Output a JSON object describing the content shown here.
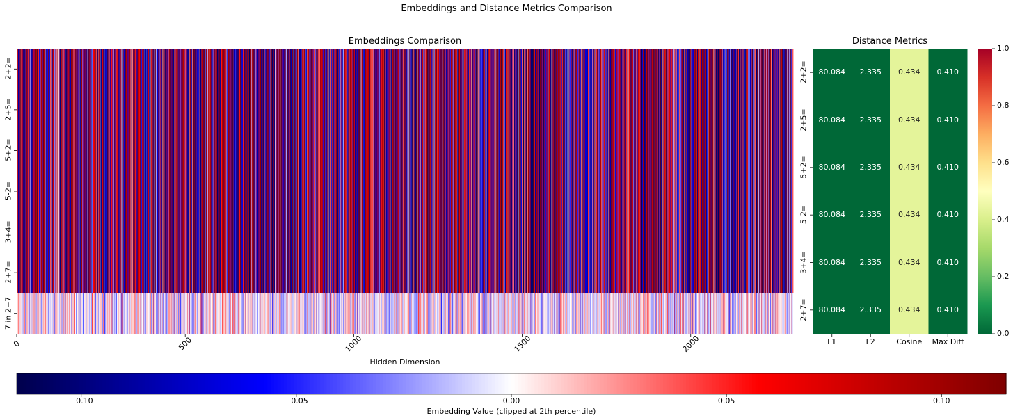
{
  "figure": {
    "title": "Embeddings and Distance Metrics Comparison"
  },
  "chart_data": [
    {
      "type": "heatmap",
      "title": "Embeddings Comparison",
      "xlabel": "Hidden Dimension",
      "ylabel": "",
      "rows": [
        "2+2=",
        "2+5=",
        "5+2=",
        "5-2=",
        "3+4=",
        "2+7=",
        "7 in 2+7"
      ],
      "x_ticks": [
        0,
        500,
        1000,
        1500,
        2000
      ],
      "x_range": [
        0,
        2304
      ],
      "hidden_dim": 2304,
      "identical_rows": [
        "2+2=",
        "2+5=",
        "5+2=",
        "5-2=",
        "3+4=",
        "2+7="
      ],
      "colormap": "seismic",
      "value_range": [
        -0.115,
        0.115
      ],
      "colorbar": {
        "label": "Embedding Value (clipped at 2th percentile)",
        "ticks": [
          "−0.10",
          "−0.05",
          "0.00",
          "0.05",
          "0.10"
        ],
        "tick_values": [
          -0.1,
          -0.05,
          0.0,
          0.05,
          0.1
        ],
        "orientation": "horizontal"
      }
    },
    {
      "type": "heatmap",
      "title": "Distance Metrics",
      "columns": [
        "L1",
        "L2",
        "Cosine",
        "Max Diff"
      ],
      "rows": [
        "2+2=",
        "2+5=",
        "5+2=",
        "5-2=",
        "3+4=",
        "2+7="
      ],
      "values": [
        [
          "80.084",
          "2.335",
          "0.434",
          "0.410"
        ],
        [
          "80.084",
          "2.335",
          "0.434",
          "0.410"
        ],
        [
          "80.084",
          "2.335",
          "0.434",
          "0.410"
        ],
        [
          "80.084",
          "2.335",
          "0.434",
          "0.410"
        ],
        [
          "80.084",
          "2.335",
          "0.434",
          "0.410"
        ],
        [
          "80.084",
          "2.335",
          "0.434",
          "0.410"
        ]
      ],
      "cell_colors": [
        "#006837",
        "#006837",
        "#e4f49a",
        "#006837"
      ],
      "text_colors": [
        "#ffffff",
        "#ffffff",
        "#222222",
        "#ffffff"
      ],
      "colormap": "RdYlGn_r",
      "value_range": [
        0.0,
        1.0
      ],
      "colorbar": {
        "ticks": [
          "0.0",
          "0.2",
          "0.4",
          "0.6",
          "0.8",
          "1.0"
        ],
        "tick_values": [
          0.0,
          0.2,
          0.4,
          0.6,
          0.8,
          1.0
        ],
        "orientation": "vertical"
      }
    }
  ]
}
